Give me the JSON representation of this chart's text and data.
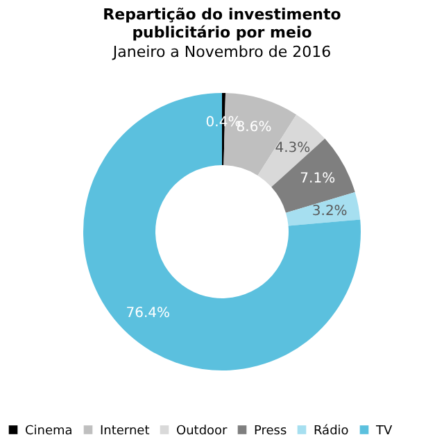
{
  "chart_data": {
    "type": "donut",
    "title": "Repartição do investimento publicitário por meio",
    "subtitle": "Janeiro a Novembro de 2016",
    "categories": [
      "Cinema",
      "Internet",
      "Outdoor",
      "Press",
      "Rádio",
      "TV"
    ],
    "values": [
      0.4,
      8.6,
      4.3,
      7.1,
      3.2,
      76.4
    ],
    "value_labels": [
      "0.4%",
      "8.6%",
      "4.3%",
      "7.1%",
      "3.2%",
      "76.4%"
    ],
    "colors": [
      "#000000",
      "#bfbfbf",
      "#d9d9d9",
      "#7f7f7f",
      "#a6dff0",
      "#5bc0de"
    ],
    "legend": "bottom"
  }
}
